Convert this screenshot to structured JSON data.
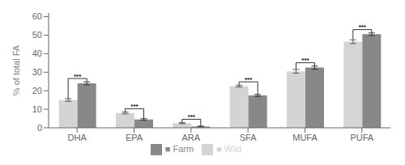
{
  "chart_data": {
    "type": "bar",
    "categories": [
      "DHA",
      "EPA",
      "ARA",
      "SFA",
      "MUFA",
      "PUFA"
    ],
    "series": [
      {
        "name": "■ Wild",
        "color": "#d4d4d4",
        "values": [
          15.0,
          8.0,
          2.5,
          22.5,
          30.5,
          46.5
        ],
        "errors": [
          0.7,
          0.5,
          0.3,
          0.5,
          1.0,
          1.0
        ]
      },
      {
        "name": "■ Farm",
        "color": "#888888",
        "values": [
          24.0,
          4.5,
          0.7,
          17.5,
          32.5,
          50.5
        ],
        "errors": [
          0.8,
          0.4,
          0.2,
          0.5,
          0.8,
          0.7
        ]
      }
    ],
    "ylabel": "% of total FA",
    "ylim": [
      0,
      62
    ],
    "yticks": [
      0,
      10,
      20,
      30,
      40,
      50,
      60
    ],
    "annotations": [
      "***",
      "***",
      "***",
      "***",
      "***",
      "***"
    ],
    "legend": "bottom"
  }
}
